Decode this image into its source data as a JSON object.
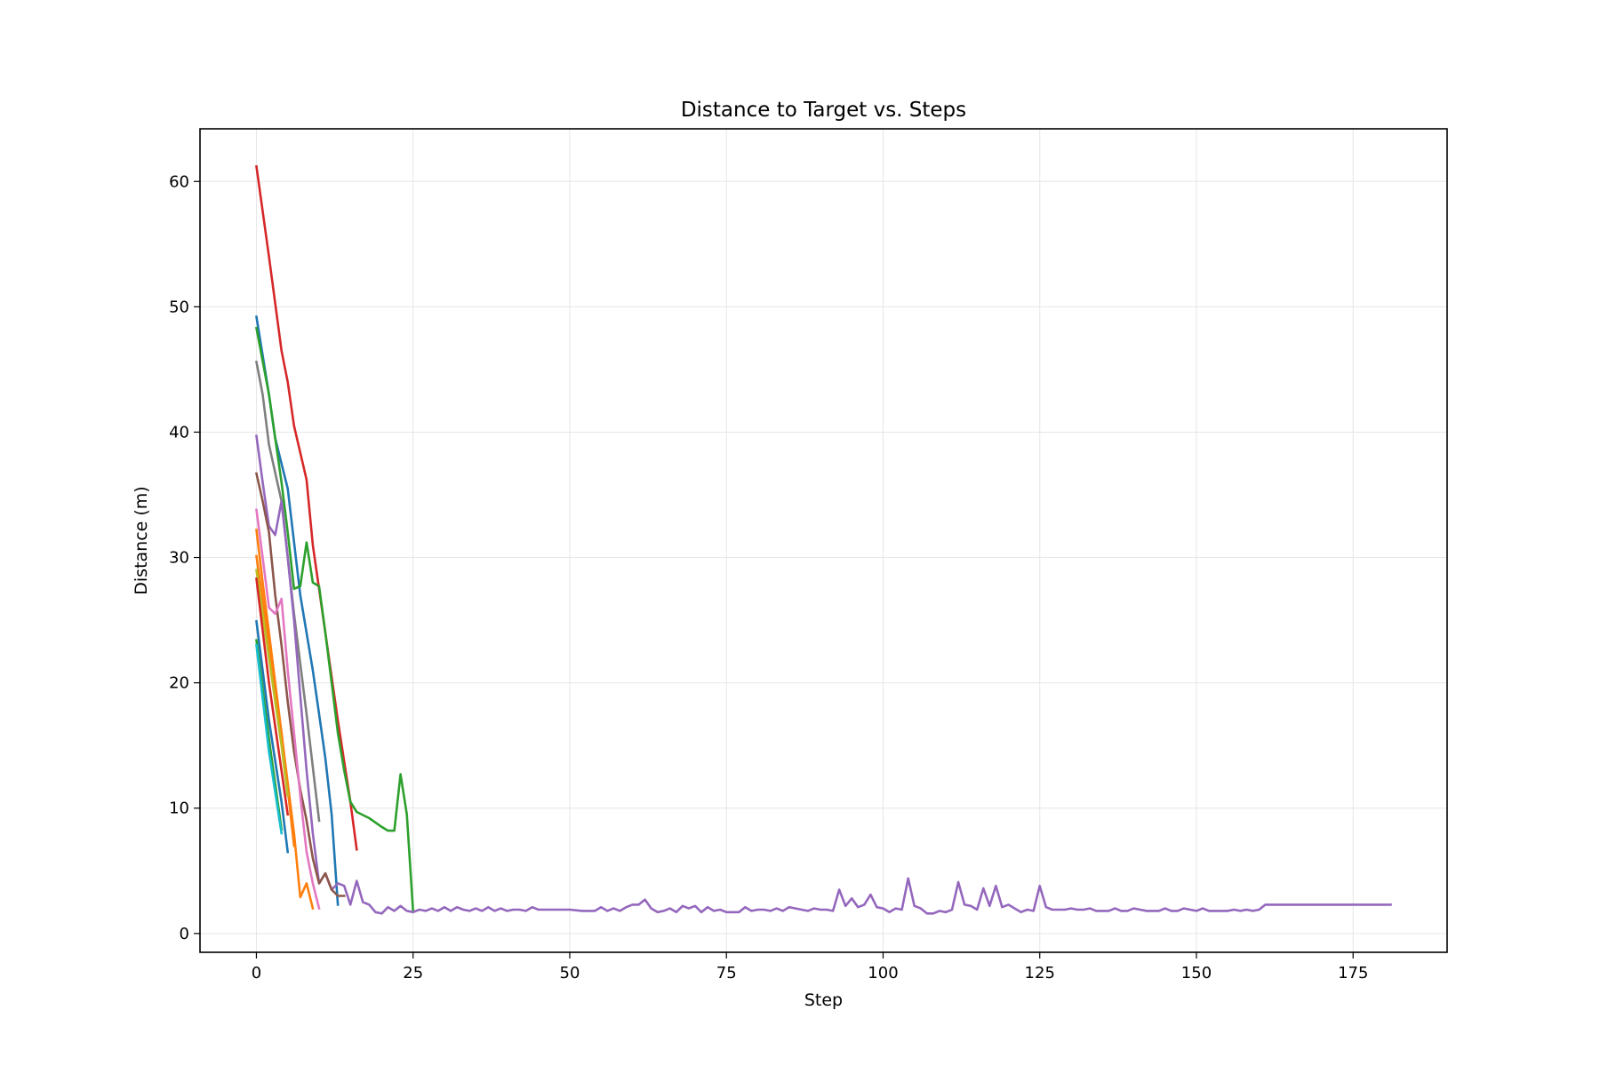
{
  "chart_data": {
    "type": "line",
    "title": "Distance to Target vs. Steps",
    "xlabel": "Step",
    "ylabel": "Distance (m)",
    "xlim": [
      -9,
      190
    ],
    "ylim": [
      -1.5,
      64.2
    ],
    "xticks": [
      0,
      25,
      50,
      75,
      100,
      125,
      150,
      175
    ],
    "yticks": [
      0,
      10,
      20,
      30,
      40,
      50,
      60
    ],
    "grid": true,
    "legend": "none",
    "series": [
      {
        "color": "#d62728",
        "x": [
          0,
          2,
          4,
          5,
          6,
          8,
          9,
          11,
          13,
          15,
          16
        ],
        "y": [
          61.2,
          54.0,
          46.5,
          44.0,
          40.5,
          36.2,
          31.0,
          24.0,
          17.0,
          10.5,
          6.7
        ]
      },
      {
        "color": "#1f77b4",
        "x": [
          0,
          2,
          3,
          5,
          7,
          9,
          10,
          11,
          12,
          13
        ],
        "y": [
          49.2,
          43.0,
          39.5,
          35.5,
          27.0,
          21.0,
          17.5,
          14.0,
          9.5,
          2.3
        ]
      },
      {
        "color": "#2ca02c",
        "x": [
          0,
          2,
          4,
          5,
          6,
          7,
          8,
          9,
          10,
          11,
          12,
          13,
          14,
          15,
          16,
          18,
          20,
          21,
          22,
          23,
          24,
          25
        ],
        "y": [
          48.3,
          43.0,
          36.0,
          32.0,
          27.5,
          27.7,
          31.2,
          28.0,
          27.7,
          24.0,
          20.0,
          16.0,
          13.0,
          10.5,
          9.7,
          9.2,
          8.5,
          8.2,
          8.2,
          12.7,
          9.5,
          1.8
        ]
      },
      {
        "color": "#7f7f7f",
        "x": [
          0,
          1,
          2,
          4,
          6,
          8,
          10
        ],
        "y": [
          45.6,
          43.0,
          39.0,
          34.5,
          25.5,
          17.5,
          9.0
        ]
      },
      {
        "color": "#9467bd",
        "x": [
          0,
          1,
          2,
          3,
          4,
          5,
          6,
          7,
          8,
          9,
          10,
          11,
          12,
          13,
          14,
          15,
          16,
          17,
          18,
          19,
          20,
          21,
          22,
          23,
          24,
          25,
          26,
          27,
          28,
          29,
          30,
          31,
          32,
          33,
          34,
          35,
          36,
          37,
          38,
          39,
          40,
          41,
          42,
          43,
          44,
          45,
          46,
          47,
          48,
          50,
          52,
          54,
          55,
          56,
          57,
          58,
          59,
          60,
          61,
          62,
          63,
          64,
          65,
          66,
          67,
          68,
          69,
          70,
          71,
          72,
          73,
          74,
          75,
          76,
          77,
          78,
          79,
          80,
          81,
          82,
          83,
          84,
          85,
          86,
          87,
          88,
          89,
          90,
          91,
          92,
          93,
          94,
          95,
          96,
          97,
          98,
          99,
          100,
          101,
          102,
          103,
          104,
          105,
          106,
          107,
          108,
          109,
          110,
          111,
          112,
          113,
          114,
          115,
          116,
          117,
          118,
          119,
          120,
          121,
          122,
          123,
          124,
          125,
          126,
          127,
          128,
          129,
          130,
          131,
          132,
          133,
          134,
          135,
          136,
          137,
          138,
          139,
          140,
          141,
          142,
          143,
          144,
          145,
          146,
          147,
          148,
          149,
          150,
          151,
          152,
          153,
          154,
          155,
          156,
          157,
          158,
          159,
          160,
          161,
          181
        ],
        "y": [
          39.7,
          36.0,
          32.5,
          31.8,
          34.5,
          30.0,
          25.0,
          19.0,
          13.0,
          8.0,
          4.0,
          4.8,
          3.5,
          4.0,
          3.8,
          2.3,
          4.2,
          2.5,
          2.3,
          1.7,
          1.6,
          2.1,
          1.8,
          2.2,
          1.8,
          1.7,
          1.9,
          1.8,
          2.0,
          1.8,
          2.1,
          1.8,
          2.1,
          1.9,
          1.8,
          2.0,
          1.8,
          2.1,
          1.8,
          2.0,
          1.8,
          1.9,
          1.9,
          1.8,
          2.1,
          1.9,
          1.9,
          1.9,
          1.9,
          1.9,
          1.8,
          1.8,
          2.1,
          1.8,
          2.0,
          1.8,
          2.1,
          2.3,
          2.3,
          2.7,
          2.0,
          1.7,
          1.8,
          2.0,
          1.7,
          2.2,
          2.0,
          2.2,
          1.7,
          2.1,
          1.8,
          1.9,
          1.7,
          1.7,
          1.7,
          2.1,
          1.8,
          1.9,
          1.9,
          1.8,
          2.0,
          1.8,
          2.1,
          2.0,
          1.9,
          1.8,
          2.0,
          1.9,
          1.9,
          1.8,
          3.5,
          2.2,
          2.8,
          2.1,
          2.3,
          3.1,
          2.1,
          2.0,
          1.7,
          2.0,
          1.9,
          4.4,
          2.2,
          2.0,
          1.6,
          1.6,
          1.8,
          1.7,
          1.9,
          4.1,
          2.3,
          2.2,
          1.9,
          3.6,
          2.2,
          3.8,
          2.1,
          2.3,
          2.0,
          1.7,
          1.9,
          1.8,
          3.8,
          2.1,
          1.9,
          1.9,
          1.9,
          2.0,
          1.9,
          1.9,
          2.0,
          1.8,
          1.8,
          1.8,
          2.0,
          1.8,
          1.8,
          2.0,
          1.9,
          1.8,
          1.8,
          1.8,
          2.0,
          1.8,
          1.8,
          2.0,
          1.9,
          1.8,
          2.0,
          1.8,
          1.8,
          1.8,
          1.8,
          1.9,
          1.8,
          1.9,
          1.8,
          1.9,
          2.3,
          2.3
        ]
      },
      {
        "color": "#8c564b",
        "x": [
          0,
          1,
          2,
          3,
          4,
          5,
          6,
          7,
          8,
          9,
          10,
          11,
          12,
          13,
          14
        ],
        "y": [
          36.7,
          34.5,
          32.0,
          27.0,
          23.0,
          18.5,
          14.5,
          11.5,
          9.0,
          6.0,
          4.0,
          4.8,
          3.5,
          3.0,
          3.0
        ]
      },
      {
        "color": "#e377c2",
        "x": [
          0,
          1,
          2,
          3,
          4,
          5,
          6,
          7,
          8,
          9,
          10
        ],
        "y": [
          33.8,
          30.0,
          26.0,
          25.5,
          26.7,
          21.0,
          16.0,
          11.0,
          6.5,
          4.0,
          2.0
        ]
      },
      {
        "color": "#ff7f0e",
        "x": [
          0,
          1,
          2,
          3,
          4,
          5,
          6,
          7,
          8,
          9
        ],
        "y": [
          32.2,
          28.0,
          24.0,
          20.0,
          16.0,
          12.0,
          8.0,
          2.9,
          4.0,
          2.0
        ]
      },
      {
        "color": "#ff7f0e",
        "x": [
          0,
          2,
          4,
          6
        ],
        "y": [
          30.1,
          23.0,
          16.0,
          7.0
        ]
      },
      {
        "color": "#bcbd22",
        "x": [
          0,
          2,
          4,
          5
        ],
        "y": [
          29.0,
          22.0,
          15.0,
          11.0
        ]
      },
      {
        "color": "#d62728",
        "x": [
          0,
          2,
          4,
          5
        ],
        "y": [
          28.3,
          20.0,
          13.0,
          9.5
        ]
      },
      {
        "color": "#1f77b4",
        "x": [
          0,
          2,
          4,
          5
        ],
        "y": [
          24.9,
          17.0,
          10.5,
          6.5
        ]
      },
      {
        "color": "#2ca02c",
        "x": [
          0,
          2,
          4
        ],
        "y": [
          23.4,
          15.5,
          8.3
        ]
      },
      {
        "color": "#17becf",
        "x": [
          0,
          2,
          4
        ],
        "y": [
          23.0,
          14.5,
          8.0
        ]
      }
    ]
  }
}
